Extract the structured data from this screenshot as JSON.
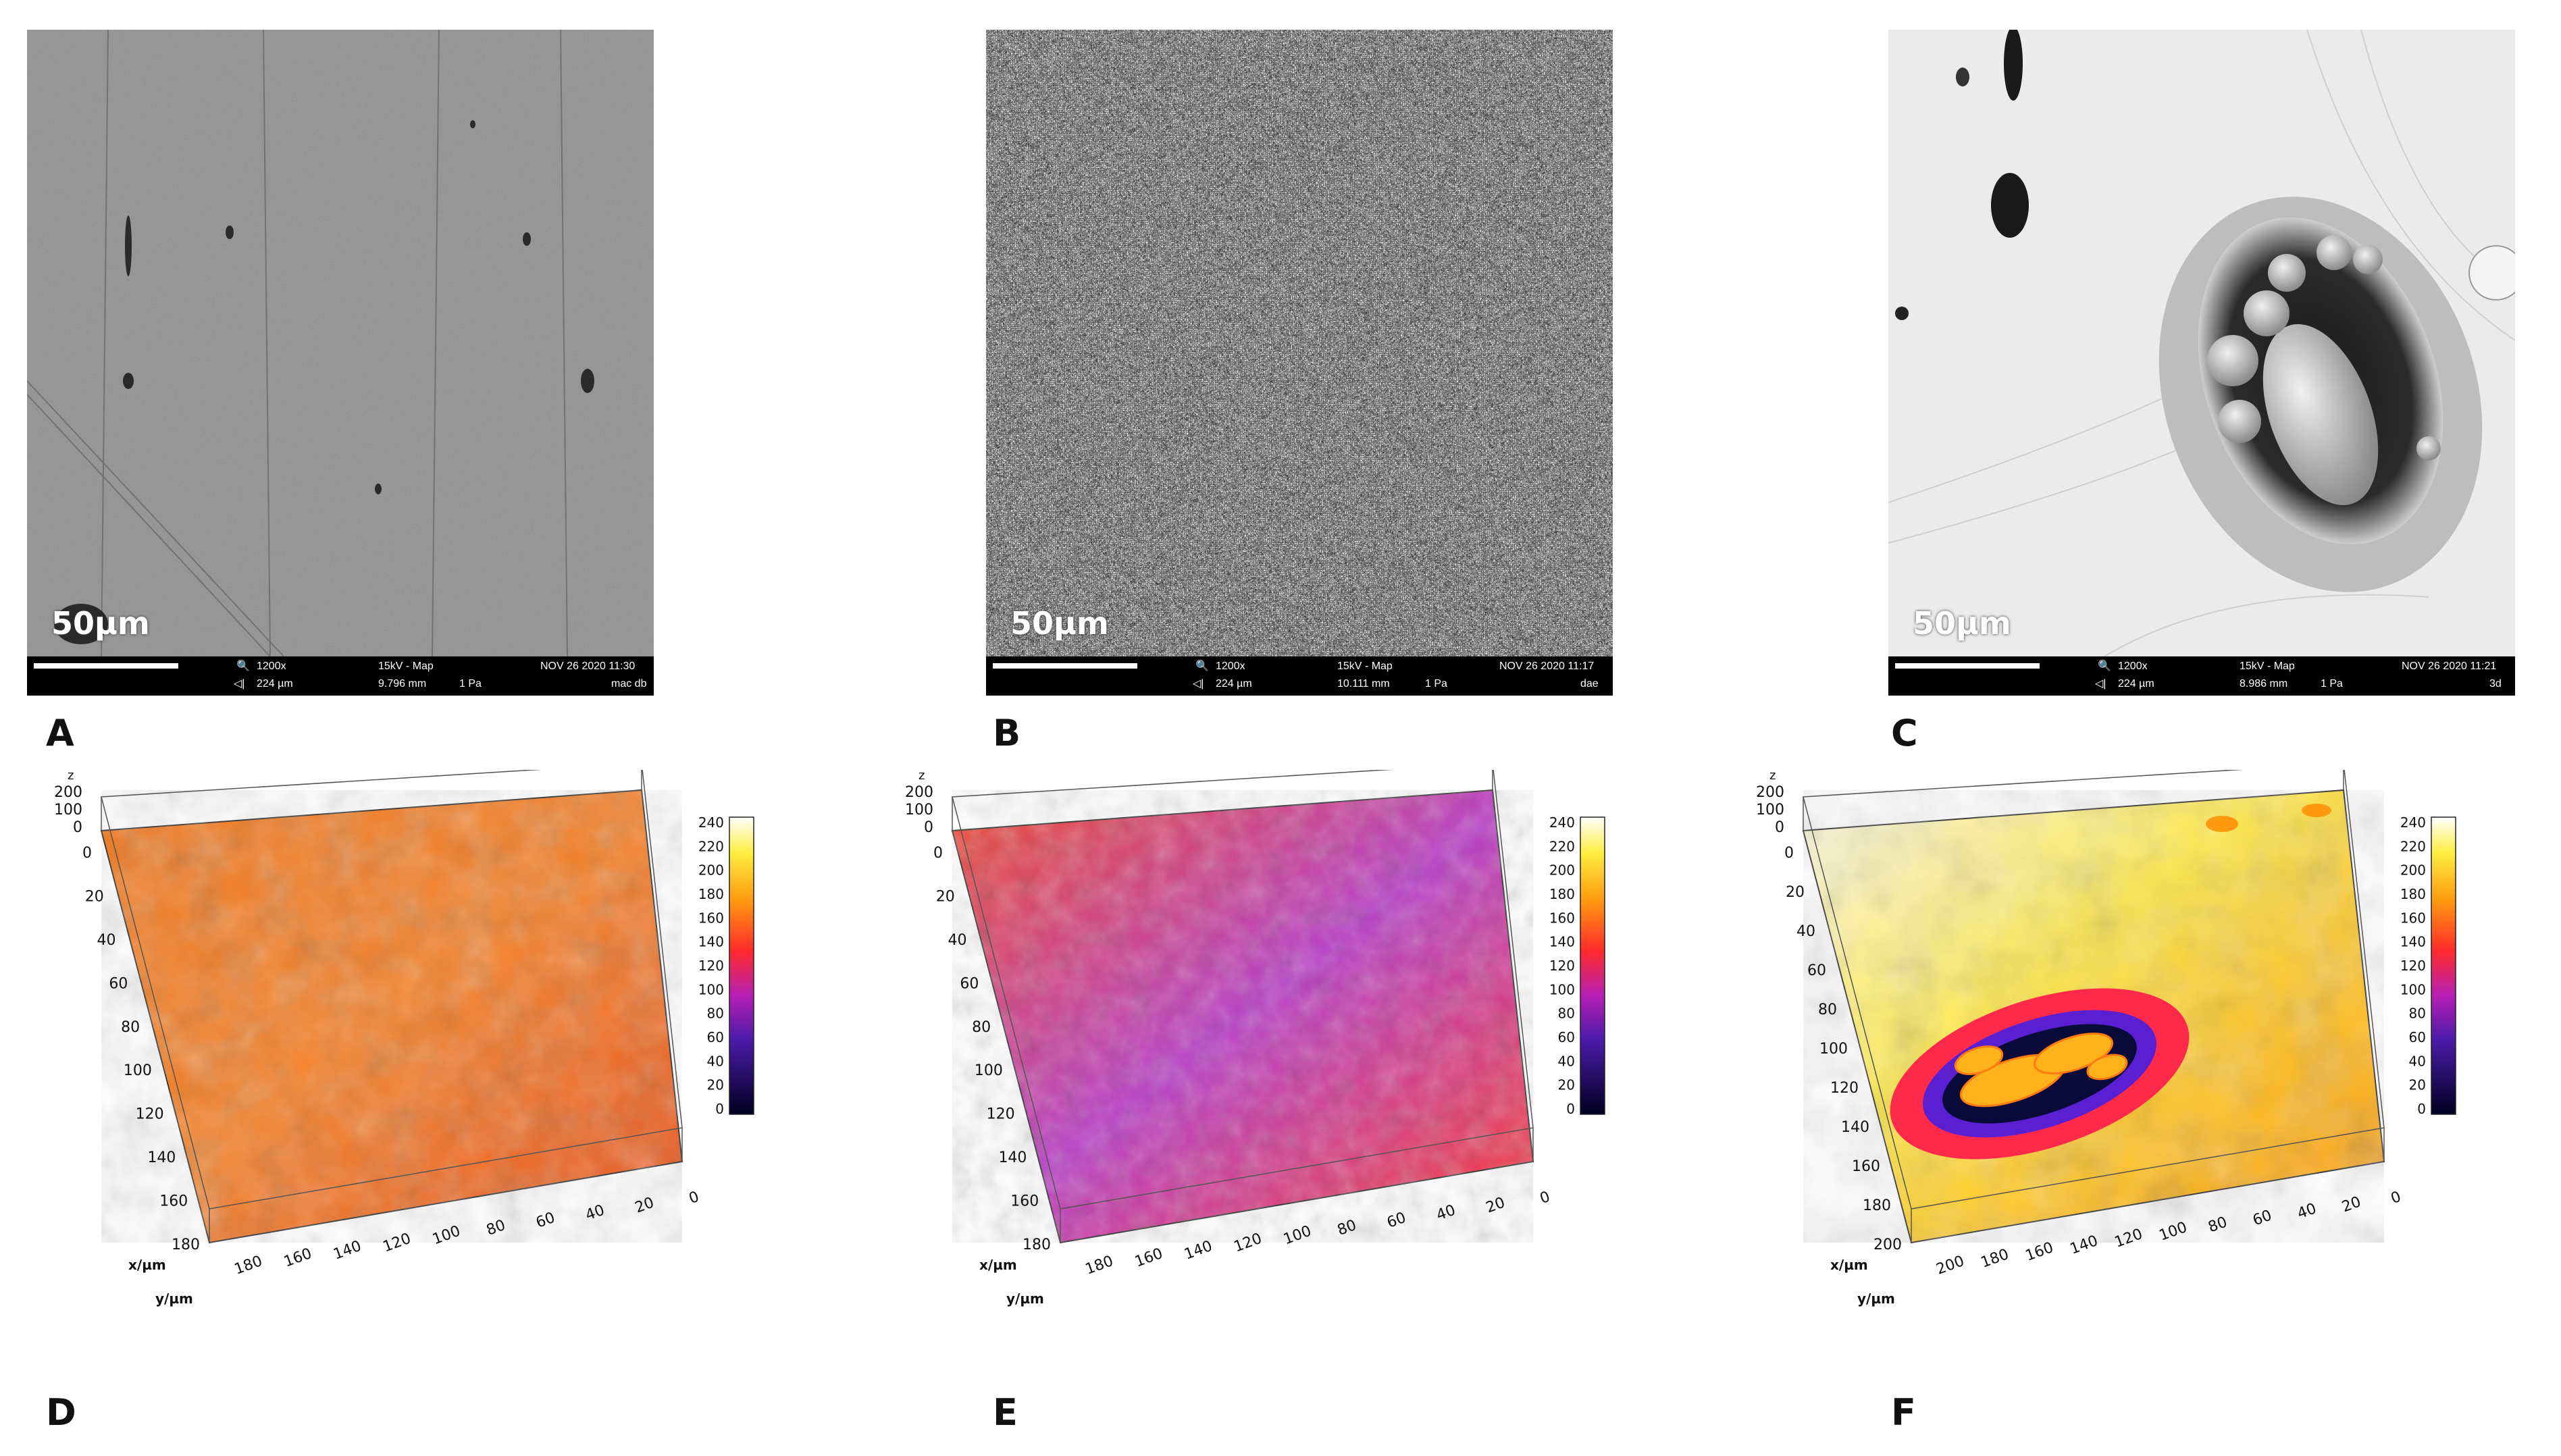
{
  "sem_panels": [
    {
      "letter": "A",
      "scale": "50µm",
      "magnification": "1200x",
      "hv_mode": "15kV - Map",
      "timestamp": "NOV 26 2020 11:30",
      "field": "224 µm",
      "wd": "9.796 mm",
      "pressure": "1 Pa",
      "sample": "mac db"
    },
    {
      "letter": "B",
      "scale": "50µm",
      "magnification": "1200x",
      "hv_mode": "15kV - Map",
      "timestamp": "NOV 26 2020 11:17",
      "field": "224 µm",
      "wd": "10.111 mm",
      "pressure": "1 Pa",
      "sample": "dae"
    },
    {
      "letter": "C",
      "scale": "50µm",
      "magnification": "1200x",
      "hv_mode": "15kV - Map",
      "timestamp": "NOV 26 2020 11:21",
      "field": "224 µm",
      "wd": "8.986 mm",
      "pressure": "1 Pa",
      "sample": "3d"
    }
  ],
  "surface_panels": [
    {
      "letter": "D",
      "z_axis_label": "z",
      "z_ticks": [
        "200",
        "100",
        "0"
      ],
      "y_axis_label": "y/µm",
      "x_axis_label": "x/µm",
      "left_ticks": [
        "0",
        "20",
        "40",
        "60",
        "80",
        "100",
        "120",
        "140",
        "160",
        "180"
      ],
      "bottom_ticks": [
        "180",
        "160",
        "140",
        "120",
        "100",
        "80",
        "60",
        "40",
        "20",
        "0"
      ],
      "colorbar_ticks": [
        "240",
        "220",
        "200",
        "180",
        "160",
        "140",
        "120",
        "100",
        "80",
        "60",
        "40",
        "20",
        "0"
      ]
    },
    {
      "letter": "E",
      "z_axis_label": "z",
      "z_ticks": [
        "200",
        "100",
        "0"
      ],
      "y_axis_label": "y/µm",
      "x_axis_label": "x/µm",
      "left_ticks": [
        "0",
        "20",
        "40",
        "60",
        "80",
        "100",
        "120",
        "140",
        "160",
        "180"
      ],
      "bottom_ticks": [
        "180",
        "160",
        "140",
        "120",
        "100",
        "80",
        "60",
        "40",
        "20",
        "0"
      ],
      "colorbar_ticks": [
        "240",
        "220",
        "200",
        "180",
        "160",
        "140",
        "120",
        "100",
        "80",
        "60",
        "40",
        "20",
        "0"
      ]
    },
    {
      "letter": "F",
      "z_axis_label": "z",
      "z_ticks": [
        "200",
        "100",
        "0"
      ],
      "y_axis_label": "y/µm",
      "x_axis_label": "x/µm",
      "left_ticks": [
        "0",
        "20",
        "40",
        "60",
        "80",
        "100",
        "120",
        "140",
        "160",
        "180",
        "200"
      ],
      "bottom_ticks": [
        "200",
        "180",
        "160",
        "140",
        "120",
        "100",
        "80",
        "60",
        "40",
        "20",
        "0"
      ],
      "colorbar_ticks": [
        "240",
        "220",
        "200",
        "180",
        "160",
        "140",
        "120",
        "100",
        "80",
        "60",
        "40",
        "20",
        "0"
      ]
    }
  ]
}
